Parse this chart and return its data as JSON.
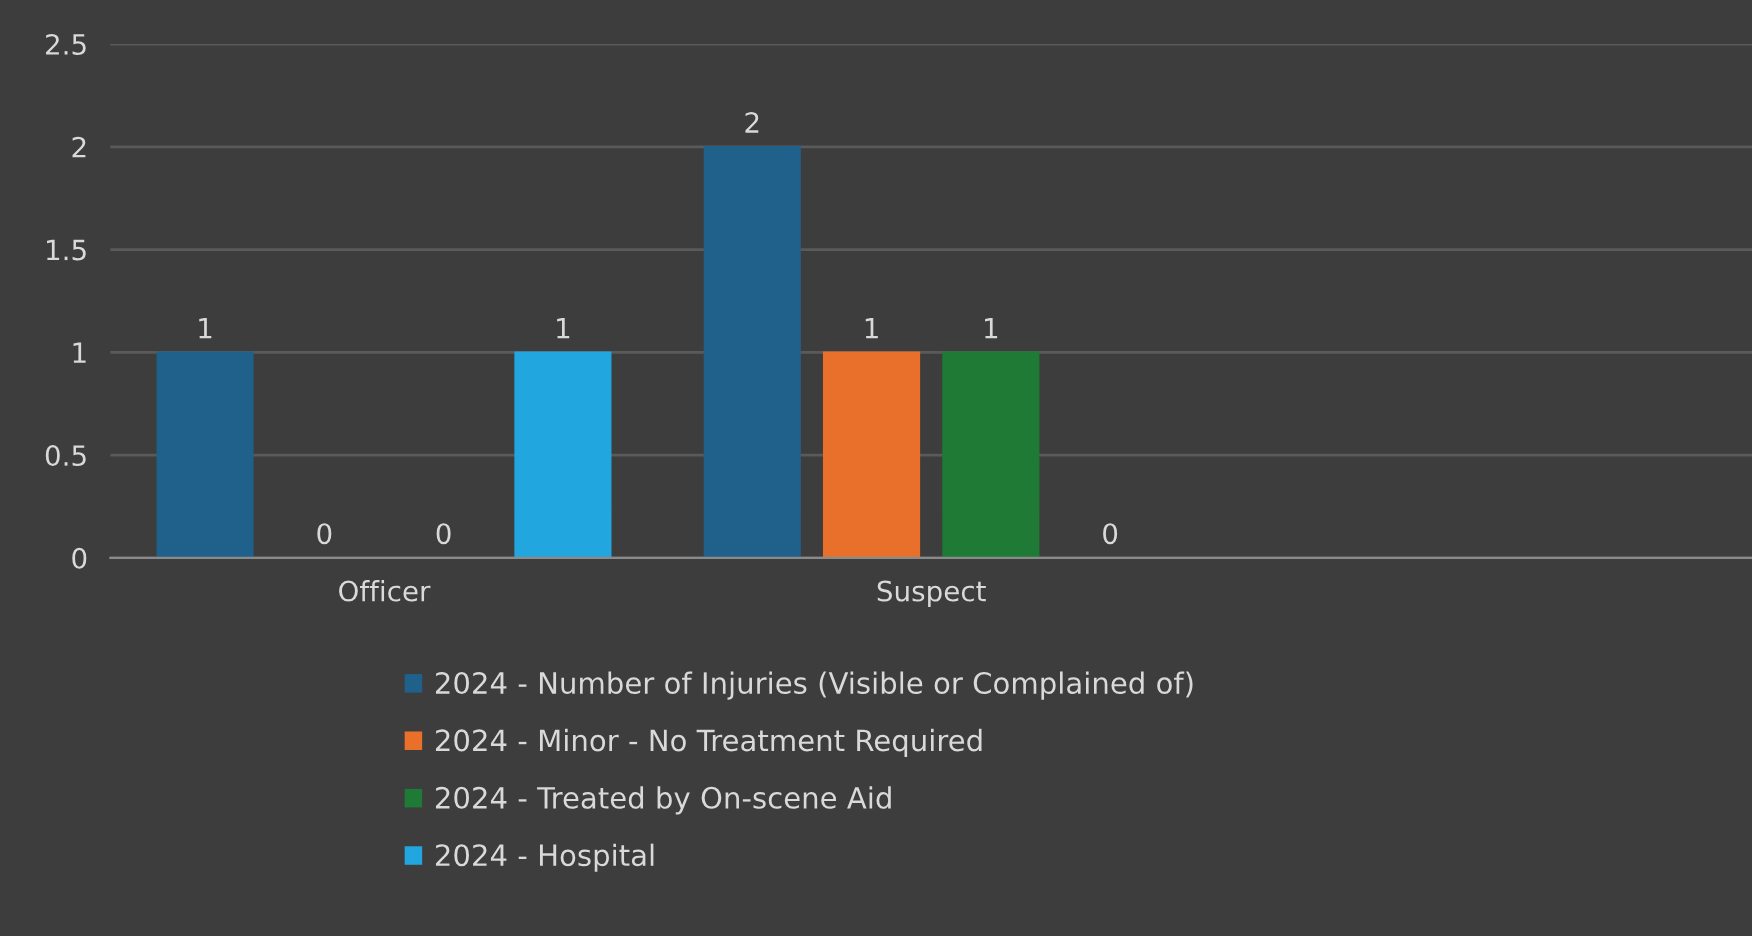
{
  "chart_data": {
    "type": "bar",
    "categories": [
      "Officer",
      "Suspect",
      null
    ],
    "series": [
      {
        "name": "2024 - Number of Injuries (Visible or Complained of)",
        "color": "#20618c",
        "values": [
          1,
          2,
          null
        ]
      },
      {
        "name": "2024 - Minor - No Treatment Required",
        "color": "#e8702a",
        "values": [
          0,
          1,
          null
        ]
      },
      {
        "name": "2024 - Treated by On-scene Aid",
        "color": "#1e7a35",
        "values": [
          0,
          1,
          null
        ]
      },
      {
        "name": "2024 - Hospital",
        "color": "#22a6e0",
        "values": [
          1,
          0,
          null
        ]
      }
    ],
    "ylim": [
      0,
      2.5
    ],
    "yticks": [
      0,
      0.5,
      1,
      1.5,
      2,
      2.5
    ],
    "grid": "y",
    "legend": "bottom",
    "data_labels": true
  }
}
